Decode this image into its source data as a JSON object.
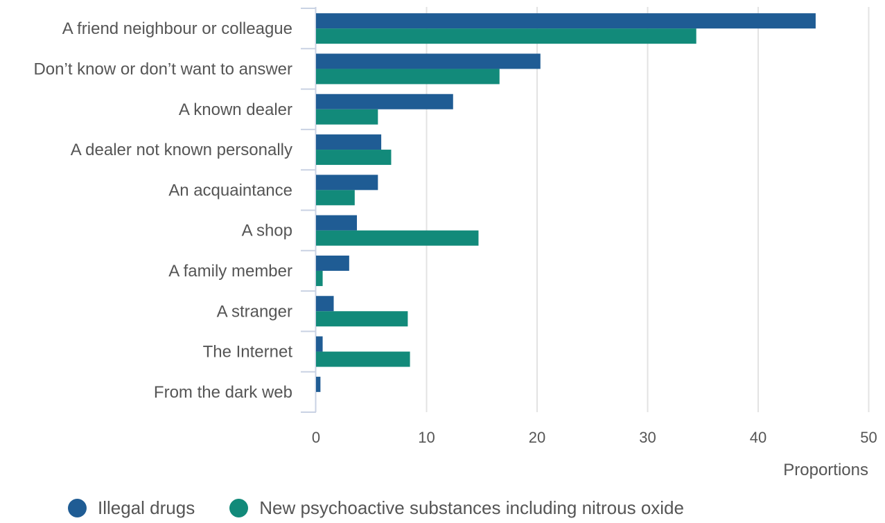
{
  "chart_data": {
    "type": "bar",
    "orientation": "horizontal",
    "categories": [
      "A friend neighbour or colleague",
      "Don’t know or don’t want to answer",
      "A known dealer",
      "A dealer not known personally",
      "An acquaintance",
      "A shop",
      "A family member",
      "A stranger",
      "The Internet",
      "From the dark web"
    ],
    "series": [
      {
        "name": "Illegal drugs",
        "color": "#1f5c94",
        "values": [
          45.2,
          20.3,
          12.4,
          5.9,
          5.6,
          3.7,
          3.0,
          1.6,
          0.6,
          0.4
        ]
      },
      {
        "name": "New psychoactive substances including nitrous oxide",
        "color": "#128a7a",
        "values": [
          34.4,
          16.6,
          5.6,
          6.8,
          3.5,
          14.7,
          0.6,
          8.3,
          8.5,
          0
        ]
      }
    ],
    "xlabel": "Proportions",
    "xlim": [
      0,
      50
    ],
    "xticks": [
      0,
      10,
      20,
      30,
      40,
      50
    ],
    "grid": true,
    "legend_position": "bottom-left"
  }
}
